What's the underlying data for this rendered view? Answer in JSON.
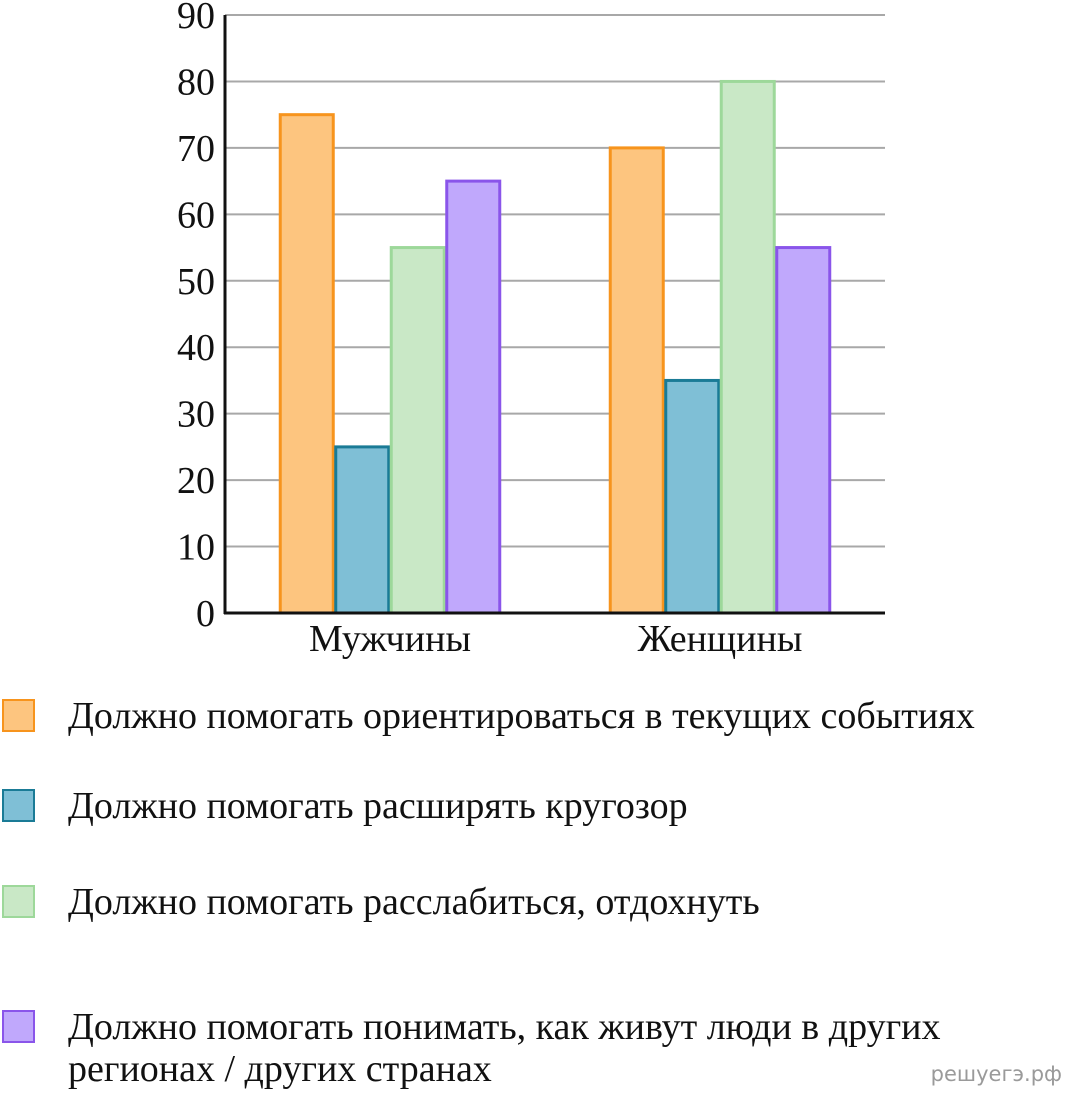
{
  "chart_data": {
    "type": "bar",
    "categories": [
      "Мужчины",
      "Женщины"
    ],
    "series": [
      {
        "name": "Должно помогать ориентироваться в текущих событиях",
        "color": "#fdc57f",
        "edgecolor": "#f7941d",
        "values": [
          75,
          70
        ]
      },
      {
        "name": "Должно помогать расширять кругозор",
        "color": "#7fbfd6",
        "edgecolor": "#1a7b96",
        "values": [
          25,
          35
        ]
      },
      {
        "name": "Должно помогать расслабиться, отдохнуть",
        "color": "#c9e8c6",
        "edgecolor": "#9dd89a",
        "values": [
          55,
          80
        ]
      },
      {
        "name": "Должно помогать понимать, как живут люди в других регионах / других странах",
        "color": "#c0a8fc",
        "edgecolor": "#8a55ea",
        "values": [
          65,
          55
        ]
      }
    ],
    "ylim": [
      0,
      90
    ],
    "yticks": [
      0,
      10,
      20,
      30,
      40,
      50,
      60,
      70,
      80,
      90
    ],
    "grid": true,
    "watermark": "решуегэ.рф"
  }
}
